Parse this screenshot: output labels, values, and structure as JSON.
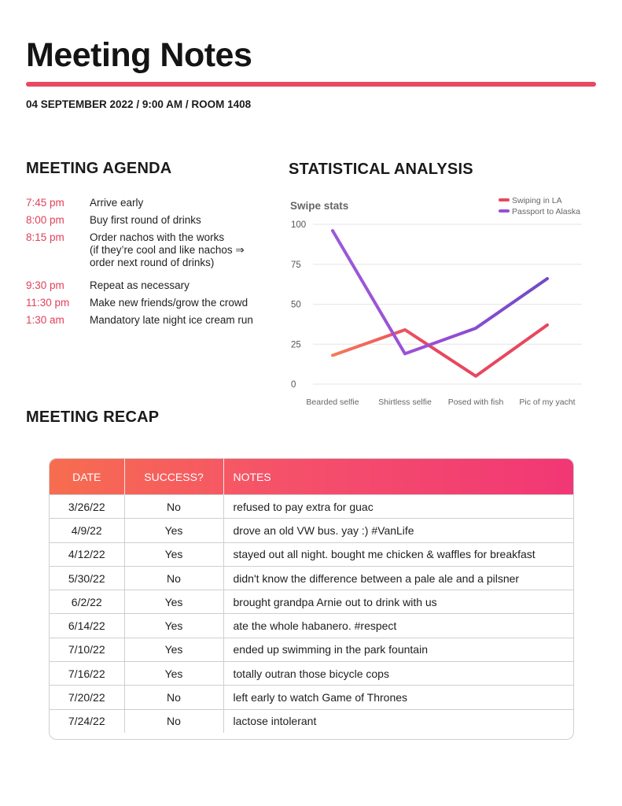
{
  "header": {
    "title": "Meeting Notes",
    "meta": "04 SEPTEMBER 2022 / 9:00 AM / ROOM 1408",
    "accent_color": "#e84862"
  },
  "agenda": {
    "heading": "MEETING AGENDA",
    "items": [
      {
        "time": "7:45 pm",
        "text": "Arrive early"
      },
      {
        "time": "8:00 pm",
        "text": "Buy first round of drinks"
      },
      {
        "time": "8:15  pm",
        "text": "Order nachos with the works",
        "sub": "(if they’re cool and like nachos ⇒\n order next round of drinks)"
      },
      {
        "time": "9:30 pm",
        "text": "Repeat as necessary"
      },
      {
        "time": "11:30 pm",
        "text": "Make new friends/grow the crowd"
      },
      {
        "time": "1:30 am",
        "text": "Mandatory late night ice cream run"
      }
    ]
  },
  "analysis": {
    "heading": "STATISTICAL ANALYSIS"
  },
  "chart_data": {
    "type": "line",
    "title": "Swipe stats",
    "categories": [
      "Bearded selfie",
      "Shirtless selfie",
      "Posed with fish",
      "Pic of my yacht"
    ],
    "series": [
      {
        "name": "Swiping in LA",
        "values": [
          18,
          34,
          5,
          37
        ],
        "color": "#e8475f",
        "start_color": "#f47a5a"
      },
      {
        "name": "Passport to Alaska",
        "values": [
          96,
          19,
          35,
          66
        ],
        "color": "#9a4fd6",
        "start_color": "#9b59d8",
        "end_color": "#6e4ac6"
      }
    ],
    "yticks": [
      0,
      25,
      50,
      75,
      100
    ],
    "ylim": [
      0,
      100
    ],
    "grid": true,
    "legend": "top-right"
  },
  "recap": {
    "heading": "MEETING RECAP",
    "columns": [
      "DATE",
      "SUCCESS?",
      "NOTES"
    ],
    "rows": [
      [
        "3/26/22",
        "No",
        "refused to pay extra for guac"
      ],
      [
        "4/9/22",
        "Yes",
        "drove an old VW bus. yay :)  #VanLife"
      ],
      [
        "4/12/22",
        "Yes",
        "stayed out all night. bought me chicken & waffles for breakfast"
      ],
      [
        "5/30/22",
        "No",
        "didn't know the difference between a pale ale and a pilsner"
      ],
      [
        "6/2/22",
        "Yes",
        "brought grandpa Arnie out to drink with us"
      ],
      [
        "6/14/22",
        "Yes",
        "ate the whole habanero. #respect"
      ],
      [
        "7/10/22",
        "Yes",
        "ended up swimming in the park fountain"
      ],
      [
        "7/16/22",
        "Yes",
        " totally outran those bicycle cops"
      ],
      [
        "7/20/22",
        "No",
        "left early to watch Game of Thrones"
      ],
      [
        "7/24/22",
        "No",
        "lactose intolerant"
      ]
    ]
  }
}
